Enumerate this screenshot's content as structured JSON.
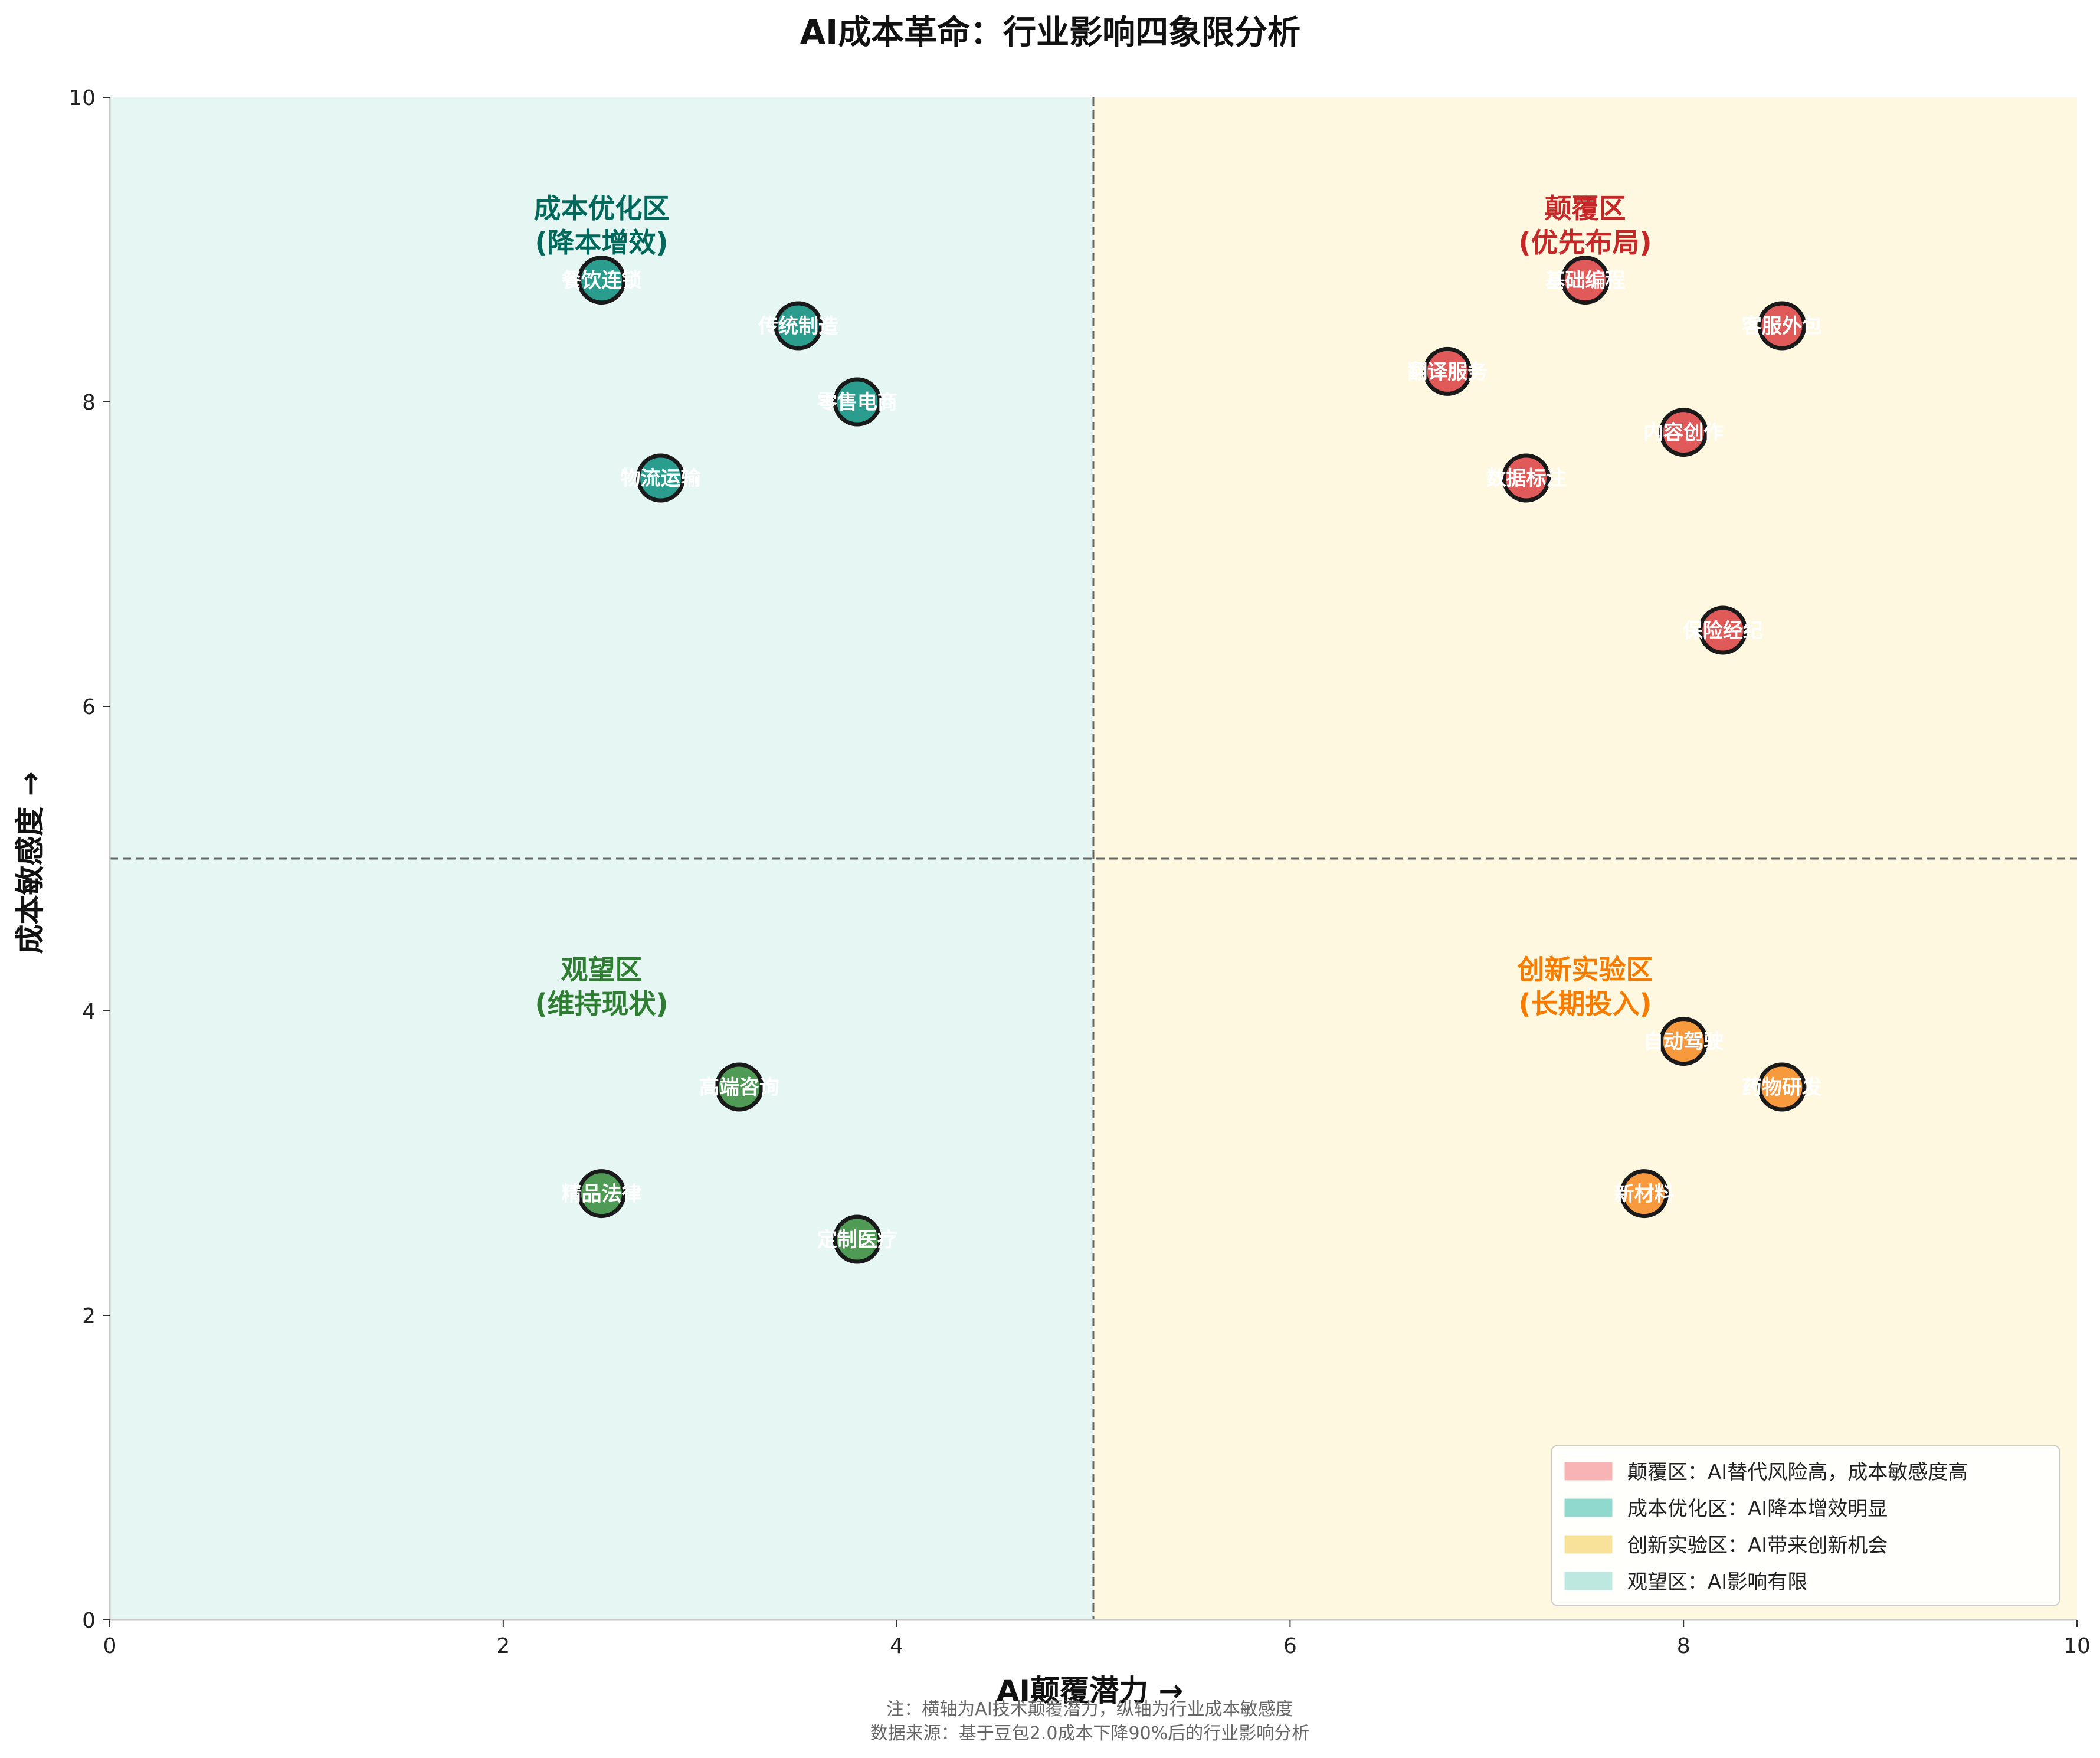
{
  "chart_data": {
    "type": "scatter",
    "title": "AI成本革命：行业影响四象限分析",
    "xlabel": "AI颠覆潜力 →",
    "ylabel": "成本敏感度 →",
    "xlim": [
      0,
      10
    ],
    "ylim": [
      0,
      10
    ],
    "xticks": [
      0,
      2,
      4,
      6,
      8,
      10
    ],
    "yticks": [
      0,
      2,
      4,
      6,
      8,
      10
    ],
    "divider": {
      "x": 5,
      "y": 5
    },
    "zone_labels": [
      {
        "line1": "颠覆区",
        "line2": "(优先布局)",
        "x": 7.5,
        "y": 9.1,
        "color": "#c62828"
      },
      {
        "line1": "成本优化区",
        "line2": "(降本增效)",
        "x": 2.5,
        "y": 9.1,
        "color": "#00695c"
      },
      {
        "line1": "创新实验区",
        "line2": "(长期投入)",
        "x": 7.5,
        "y": 4.1,
        "color": "#f57c00"
      },
      {
        "line1": "观望区",
        "line2": "(维持现状)",
        "x": 2.5,
        "y": 4.1,
        "color": "#2e7d32"
      }
    ],
    "series": [
      {
        "name": "颠覆区",
        "color": "#e05a5a",
        "points": [
          {
            "label": "基础编程",
            "x": 7.5,
            "y": 8.8
          },
          {
            "label": "客服外包",
            "x": 8.5,
            "y": 8.5
          },
          {
            "label": "翻译服务",
            "x": 6.8,
            "y": 8.2
          },
          {
            "label": "内容创作",
            "x": 8.0,
            "y": 7.8
          },
          {
            "label": "数据标注",
            "x": 7.2,
            "y": 7.5
          },
          {
            "label": "保险经纪",
            "x": 8.2,
            "y": 6.5
          }
        ]
      },
      {
        "name": "成本优化区",
        "color": "#2a9d8f",
        "points": [
          {
            "label": "餐饮连锁",
            "x": 2.5,
            "y": 8.8
          },
          {
            "label": "传统制造",
            "x": 3.5,
            "y": 8.5
          },
          {
            "label": "零售电商",
            "x": 3.8,
            "y": 8.0
          },
          {
            "label": "物流运输",
            "x": 2.8,
            "y": 7.5
          }
        ]
      },
      {
        "name": "创新实验区",
        "color": "#f79a3e",
        "points": [
          {
            "label": "自动驾驶",
            "x": 8.0,
            "y": 3.8
          },
          {
            "label": "药物研发",
            "x": 8.5,
            "y": 3.5
          },
          {
            "label": "新材料",
            "x": 7.8,
            "y": 2.8
          }
        ]
      },
      {
        "name": "观望区",
        "color": "#4f9a55",
        "points": [
          {
            "label": "高端咨询",
            "x": 3.2,
            "y": 3.5
          },
          {
            "label": "精品法律",
            "x": 2.5,
            "y": 2.8
          },
          {
            "label": "定制医疗",
            "x": 3.8,
            "y": 2.5
          }
        ]
      }
    ],
    "legend": {
      "placement": "bottom-right",
      "items": [
        {
          "label": "颠覆区：AI替代风险高，成本敏感度高",
          "color": "#f8b4b4"
        },
        {
          "label": "成本优化区：AI降本增效明显",
          "color": "#8fd9cf"
        },
        {
          "label": "创新实验区：AI带来创新机会",
          "color": "#f8e29a"
        },
        {
          "label": "观望区：AI影响有限",
          "color": "#bde8e0"
        }
      ]
    },
    "background": {
      "left_half": "#e6f6f2",
      "right_half": "#fef8e1"
    },
    "footnotes": [
      "注：横轴为AI技术颠覆潜力，纵轴为行业成本敏感度",
      "数据来源：基于豆包2.0成本下降90%后的行业影响分析"
    ]
  }
}
